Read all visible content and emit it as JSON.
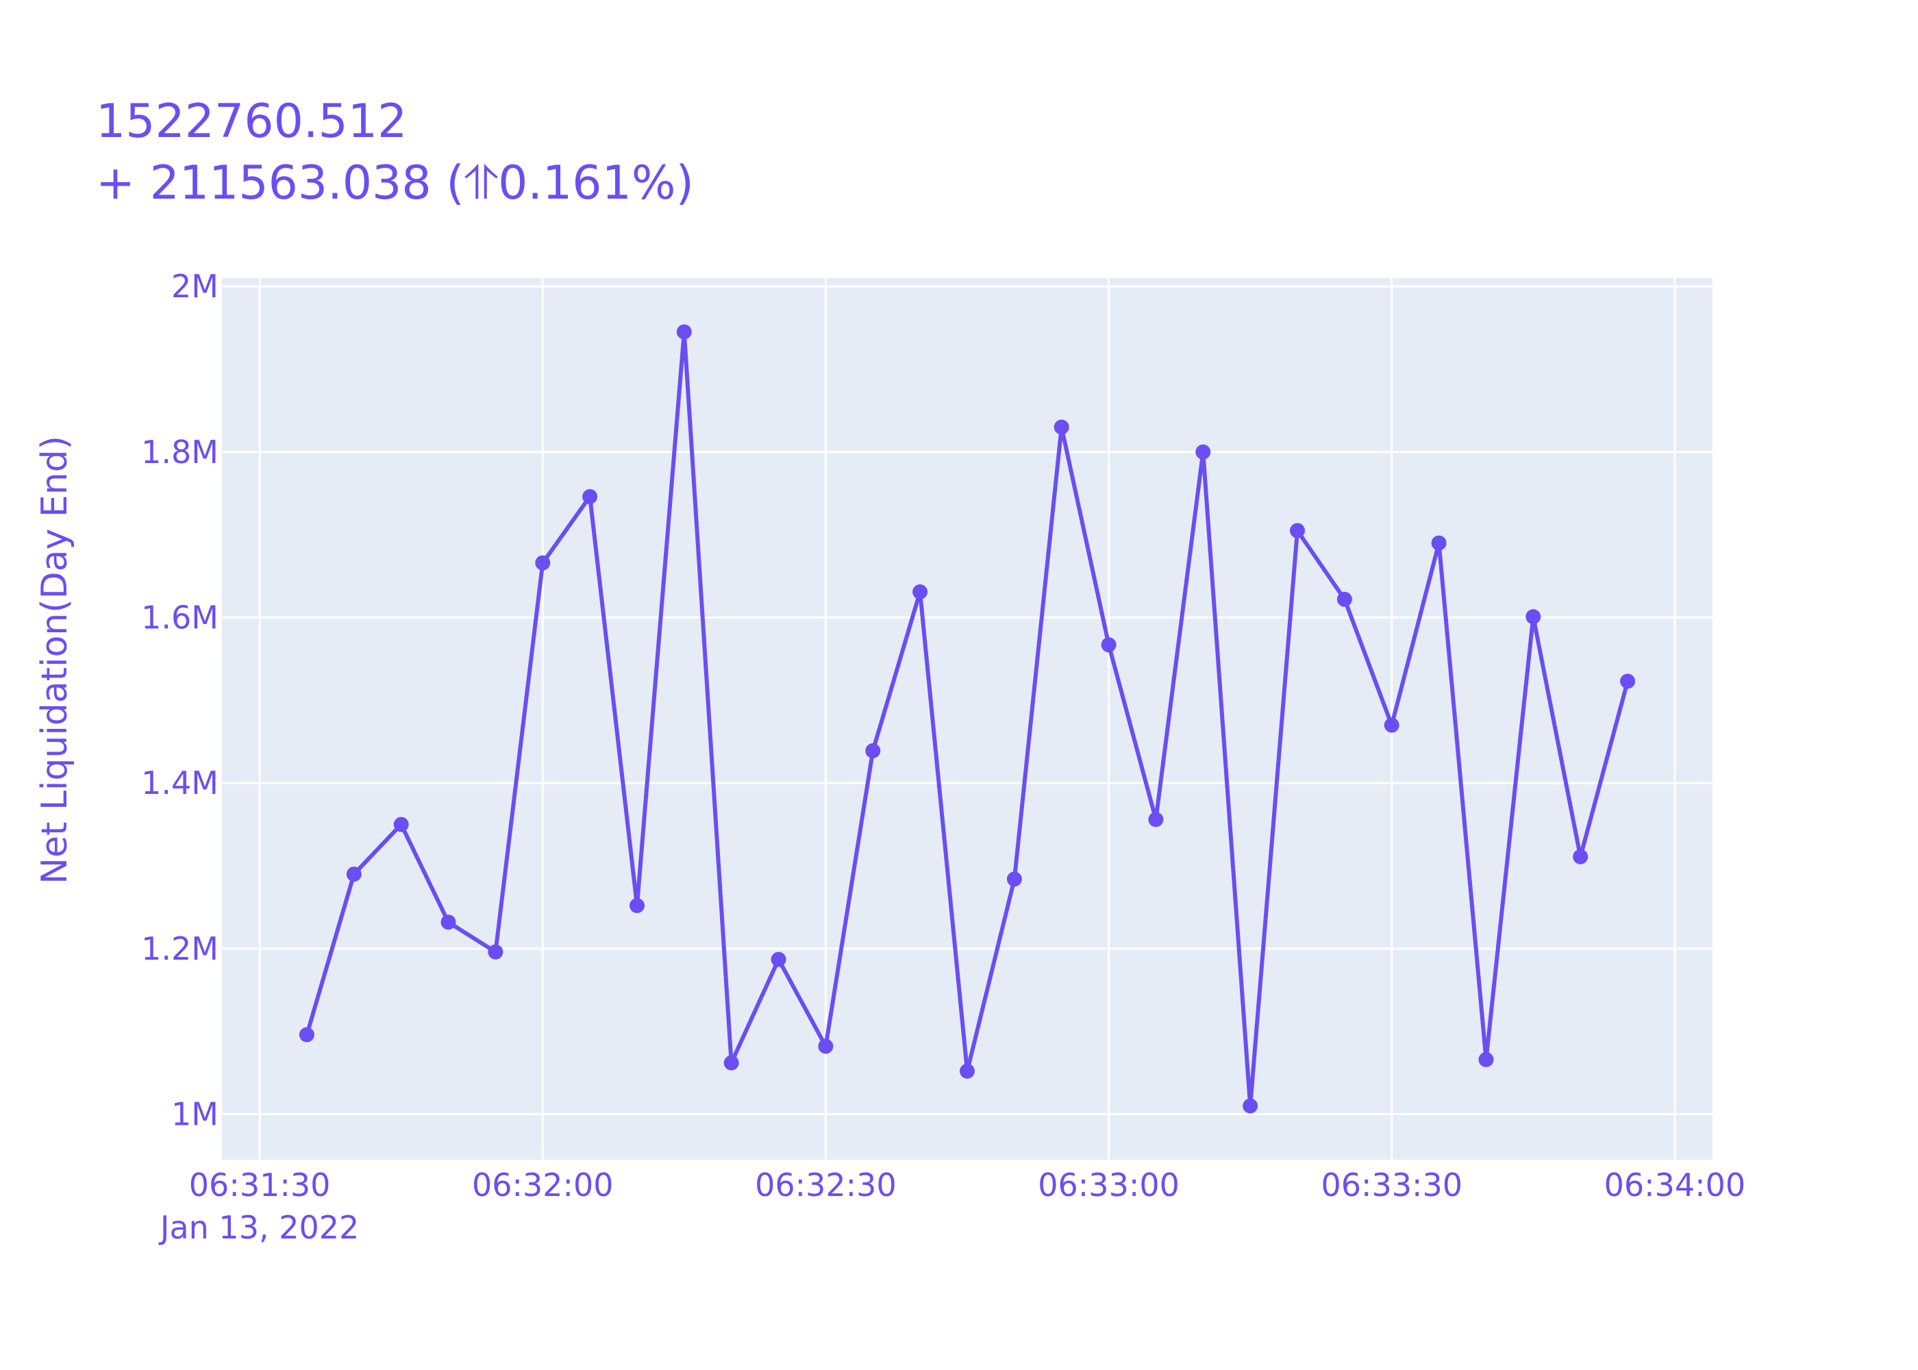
{
  "chart_data": {
    "type": "line",
    "title": "1522760.512",
    "subtitle": "+ 211563.038 (⥣0.161%)",
    "xlabel": "",
    "ylabel": "Net Liquidation(Day End)",
    "x_ticks": [
      "06:31:30",
      "06:32:00",
      "06:32:30",
      "06:33:00",
      "06:33:30",
      "06:34:00"
    ],
    "x_tick_date": "Jan 13, 2022",
    "x_tick_seconds": [
      0,
      30,
      60,
      90,
      120,
      150
    ],
    "x_range_seconds": [
      -4,
      154
    ],
    "y_ticks": [
      "1M",
      "1.2M",
      "1.4M",
      "1.6M",
      "1.8M",
      "2M"
    ],
    "y_tick_values": [
      1000000,
      1200000,
      1400000,
      1600000,
      1800000,
      2000000
    ],
    "ylim": [
      945000,
      2010000
    ],
    "x": [
      "06:31:35",
      "06:31:40",
      "06:31:45",
      "06:31:50",
      "06:31:55",
      "06:32:00",
      "06:32:05",
      "06:32:10",
      "06:32:15",
      "06:32:20",
      "06:32:25",
      "06:32:30",
      "06:32:35",
      "06:32:40",
      "06:32:45",
      "06:32:50",
      "06:32:55",
      "06:33:00",
      "06:33:05",
      "06:33:10",
      "06:33:15",
      "06:33:20",
      "06:33:25",
      "06:33:30",
      "06:33:35",
      "06:33:40",
      "06:33:45",
      "06:33:50",
      "06:33:55"
    ],
    "x_seconds": [
      5,
      10,
      15,
      20,
      25,
      30,
      35,
      40,
      45,
      50,
      55,
      60,
      65,
      70,
      75,
      80,
      85,
      90,
      95,
      100,
      105,
      110,
      115,
      120,
      125,
      130,
      135,
      140,
      145
    ],
    "series": [
      {
        "values": [
          1096000,
          1290000,
          1350000,
          1232000,
          1196000,
          1666000,
          1746000,
          1252000,
          1945000,
          1062000,
          1187000,
          1082000,
          1439000,
          1631000,
          1052000,
          1284000,
          1830000,
          1567000,
          1356000,
          1800000,
          1010000,
          1705000,
          1622000,
          1470000,
          1690000,
          1066000,
          1601000,
          1311000,
          1523000
        ]
      }
    ],
    "grid": true,
    "legend": "none",
    "colors": {
      "line": "#636efa",
      "text": "#6a4ef2",
      "plot_bg": "#e5ecf6",
      "grid": "#ffffff"
    }
  }
}
